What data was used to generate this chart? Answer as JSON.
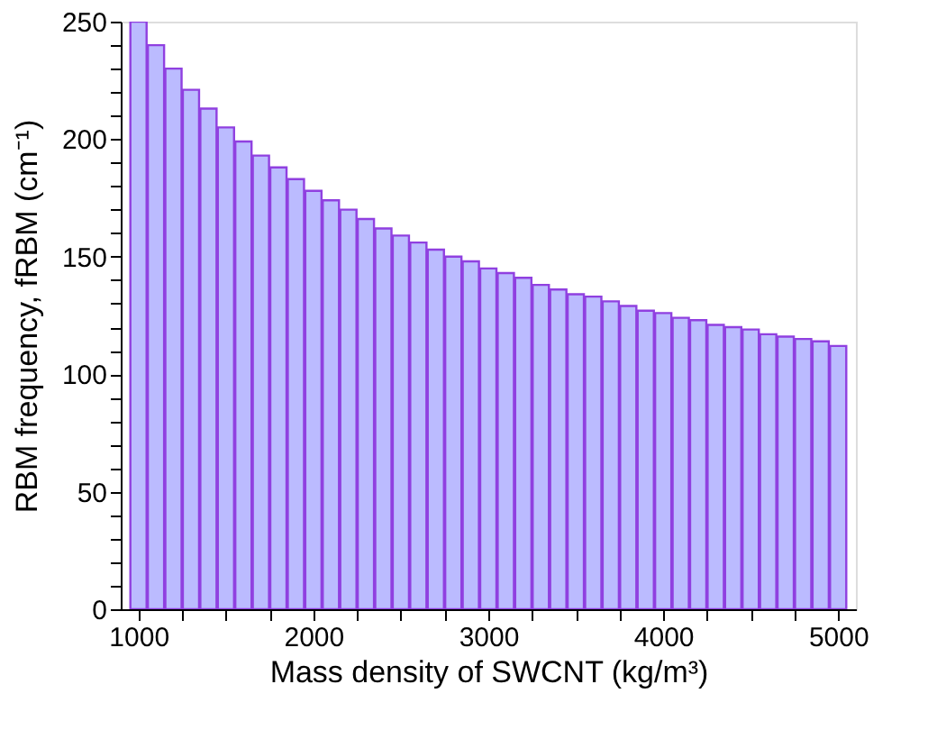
{
  "chart_data": {
    "type": "bar",
    "xlabel": "Mass density of SWCNT (kg/m³)",
    "ylabel": "RBM frequency, fRBM (cm⁻¹)",
    "x": [
      1000,
      1100,
      1200,
      1300,
      1400,
      1500,
      1600,
      1700,
      1800,
      1900,
      2000,
      2100,
      2200,
      2300,
      2400,
      2500,
      2600,
      2700,
      2800,
      2900,
      3000,
      3100,
      3200,
      3300,
      3400,
      3500,
      3600,
      3700,
      3800,
      3900,
      4000,
      4100,
      4200,
      4300,
      4400,
      4500,
      4600,
      4700,
      4800,
      4900,
      5000
    ],
    "values": [
      250,
      240,
      230,
      221,
      213,
      205,
      199,
      193,
      188,
      183,
      178,
      174,
      170,
      166,
      162,
      159,
      156,
      153,
      150,
      148,
      145,
      143,
      141,
      138,
      136,
      134,
      133,
      131,
      129,
      127,
      126,
      124,
      123,
      121,
      120,
      119,
      117,
      116,
      115,
      114,
      112
    ],
    "color": "#bbbbff",
    "xlim": [
      950,
      5050
    ],
    "xticks": [
      1000,
      {
        "value": 1250,
        "label": null
      },
      {
        "value": 1500,
        "label": null
      },
      {
        "value": 1750,
        "label": null
      },
      2000,
      {
        "value": 2250,
        "label": null
      },
      {
        "value": 2500,
        "label": null
      },
      {
        "value": 2750,
        "label": null
      },
      3000,
      {
        "value": 3250,
        "label": null
      },
      {
        "value": 3500,
        "label": null
      },
      {
        "value": 3750,
        "label": null
      },
      4000,
      {
        "value": 4250,
        "label": null
      },
      {
        "value": 4500,
        "label": null
      },
      {
        "value": 4750,
        "label": null
      },
      5000
    ],
    "ylim": [
      0,
      250
    ],
    "yticks": [
      0,
      {
        "value": 10,
        "label": null
      },
      {
        "value": 20,
        "label": null
      },
      {
        "value": 30,
        "label": null
      },
      {
        "value": 40,
        "label": null
      },
      50,
      {
        "value": 60,
        "label": null
      },
      {
        "value": 70,
        "label": null
      },
      {
        "value": 80,
        "label": null
      },
      {
        "value": 90,
        "label": null
      },
      100,
      {
        "value": 110,
        "label": null
      },
      {
        "value": 120,
        "label": null
      },
      {
        "value": 130,
        "label": null
      },
      {
        "value": 140,
        "label": null
      },
      150,
      {
        "value": 160,
        "label": null
      },
      {
        "value": 170,
        "label": null
      },
      {
        "value": 180,
        "label": null
      },
      {
        "value": 190,
        "label": null
      },
      200,
      {
        "value": 210,
        "label": null
      },
      {
        "value": 220,
        "label": null
      },
      {
        "value": 230,
        "label": null
      },
      {
        "value": 240,
        "label": null
      },
      250
    ],
    "grid": false
  }
}
